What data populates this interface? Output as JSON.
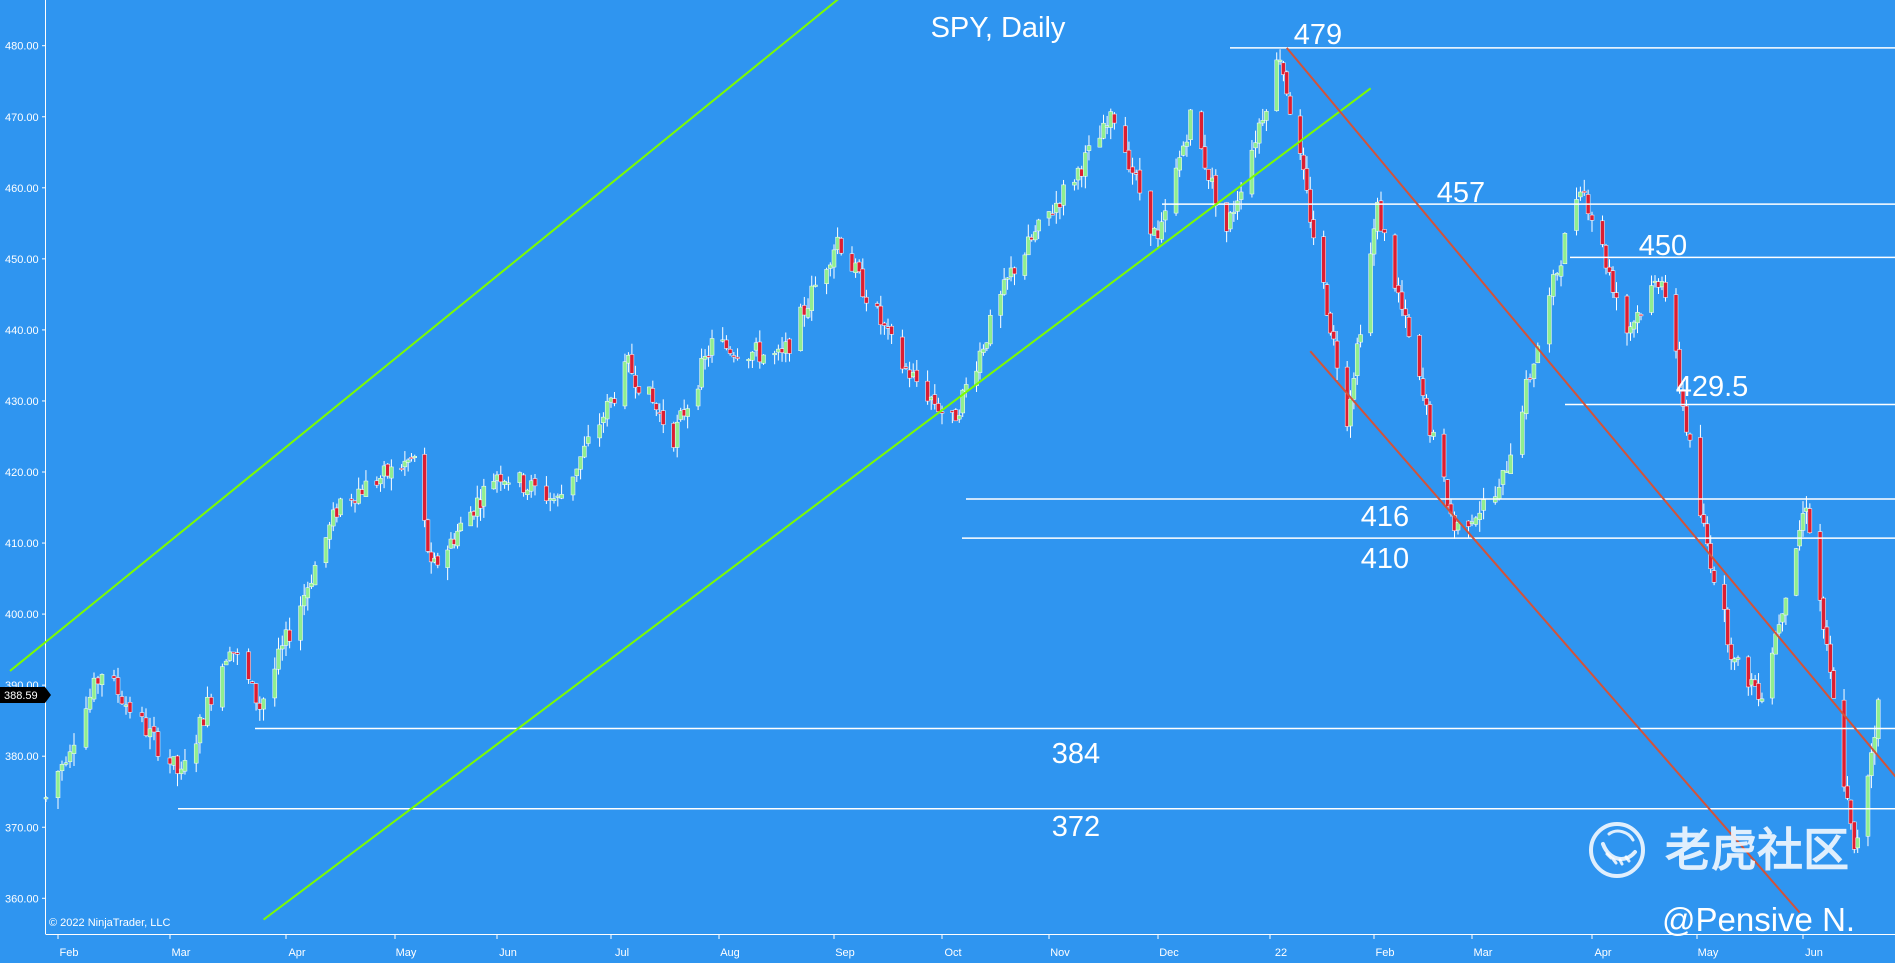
{
  "chart_data": {
    "type": "candlestick",
    "title": "SPY, Daily",
    "ylim": [
      357,
      489
    ],
    "y_ticks": [
      "360.00",
      "370.00",
      "380.00",
      "390.00",
      "400.00",
      "410.00",
      "420.00",
      "430.00",
      "440.00",
      "450.00",
      "460.00",
      "470.00",
      "480.00"
    ],
    "x_ticks": [
      "Feb",
      "Mar",
      "Apr",
      "May",
      "Jun",
      "Jul",
      "Aug",
      "Sep",
      "Oct",
      "Nov",
      "Dec",
      "22",
      "Feb",
      "Mar",
      "Apr",
      "May",
      "Jun"
    ],
    "last_price": "388.59",
    "grid": false,
    "colors": {
      "background": "#2F95F0",
      "up_candle": "#90EE90",
      "down_candle": "#DC1E32",
      "support_resistance": "#FFFFFF",
      "uptrend_channel": "#7CFC00",
      "downtrend_channel": "#D2533A"
    },
    "levels": [
      {
        "label": "479",
        "value": 479.7
      },
      {
        "label": "457",
        "value": 457.7
      },
      {
        "label": "450",
        "value": 450.2
      },
      {
        "label": "429.5",
        "value": 429.5
      },
      {
        "label": "416",
        "value": 416.2
      },
      {
        "label": "410",
        "value": 410.7
      },
      {
        "label": "384",
        "value": 383.9
      },
      {
        "label": "372",
        "value": 372.6
      }
    ],
    "price_path": [
      {
        "date": "2021-01-29",
        "close": 374
      },
      {
        "date": "2021-02-12",
        "close": 392
      },
      {
        "date": "2021-03-04",
        "close": 377
      },
      {
        "date": "2021-03-17",
        "close": 396
      },
      {
        "date": "2021-03-25",
        "close": 387
      },
      {
        "date": "2021-04-16",
        "close": 416
      },
      {
        "date": "2021-05-07",
        "close": 422
      },
      {
        "date": "2021-05-12",
        "close": 406
      },
      {
        "date": "2021-06-01",
        "close": 420
      },
      {
        "date": "2021-06-17",
        "close": 416
      },
      {
        "date": "2021-07-06",
        "close": 435
      },
      {
        "date": "2021-07-19",
        "close": 425
      },
      {
        "date": "2021-07-30",
        "close": 438
      },
      {
        "date": "2021-08-18",
        "close": 436
      },
      {
        "date": "2021-09-02",
        "close": 453
      },
      {
        "date": "2021-09-20",
        "close": 435
      },
      {
        "date": "2021-10-04",
        "close": 427
      },
      {
        "date": "2021-10-21",
        "close": 448
      },
      {
        "date": "2021-11-19",
        "close": 470
      },
      {
        "date": "2021-12-01",
        "close": 452
      },
      {
        "date": "2021-12-10",
        "close": 470
      },
      {
        "date": "2021-12-20",
        "close": 454
      },
      {
        "date": "2022-01-04",
        "close": 479
      },
      {
        "date": "2022-01-24",
        "close": 428
      },
      {
        "date": "2022-02-02",
        "close": 457
      },
      {
        "date": "2022-02-24",
        "close": 412
      },
      {
        "date": "2022-03-08",
        "close": 417
      },
      {
        "date": "2022-03-29",
        "close": 461
      },
      {
        "date": "2022-04-11",
        "close": 440
      },
      {
        "date": "2022-04-21",
        "close": 448
      },
      {
        "date": "2022-05-02",
        "close": 414
      },
      {
        "date": "2022-05-12",
        "close": 393
      },
      {
        "date": "2022-05-20",
        "close": 389
      },
      {
        "date": "2022-06-02",
        "close": 416
      },
      {
        "date": "2022-06-16",
        "close": 366
      },
      {
        "date": "2022-06-24",
        "close": 390
      }
    ],
    "trendlines": [
      {
        "name": "upper uptrend channel",
        "color": "uptrend",
        "from": {
          "date": "2021-01-20",
          "price": 392
        },
        "to": {
          "date": "2021-09-13",
          "price": 491
        }
      },
      {
        "name": "lower uptrend channel",
        "color": "uptrend",
        "from": {
          "date": "2021-03-26",
          "price": 357
        },
        "to": {
          "date": "2022-01-31",
          "price": 474
        }
      },
      {
        "name": "upper downtrend channel",
        "color": "downtrend",
        "from": {
          "date": "2022-01-06",
          "price": 479.7
        },
        "to": {
          "date": "2022-06-30",
          "price": 376
        }
      },
      {
        "name": "lower downtrend channel",
        "color": "downtrend",
        "from": {
          "date": "2022-01-13",
          "price": 437
        },
        "to": {
          "date": "2022-05-31",
          "price": 358
        }
      }
    ]
  },
  "copyright": "© 2022 NinjaTrader, LLC",
  "watermark": {
    "text": "老虎社区",
    "icon": "tiger-logo-icon"
  },
  "author": "@Pensive N."
}
